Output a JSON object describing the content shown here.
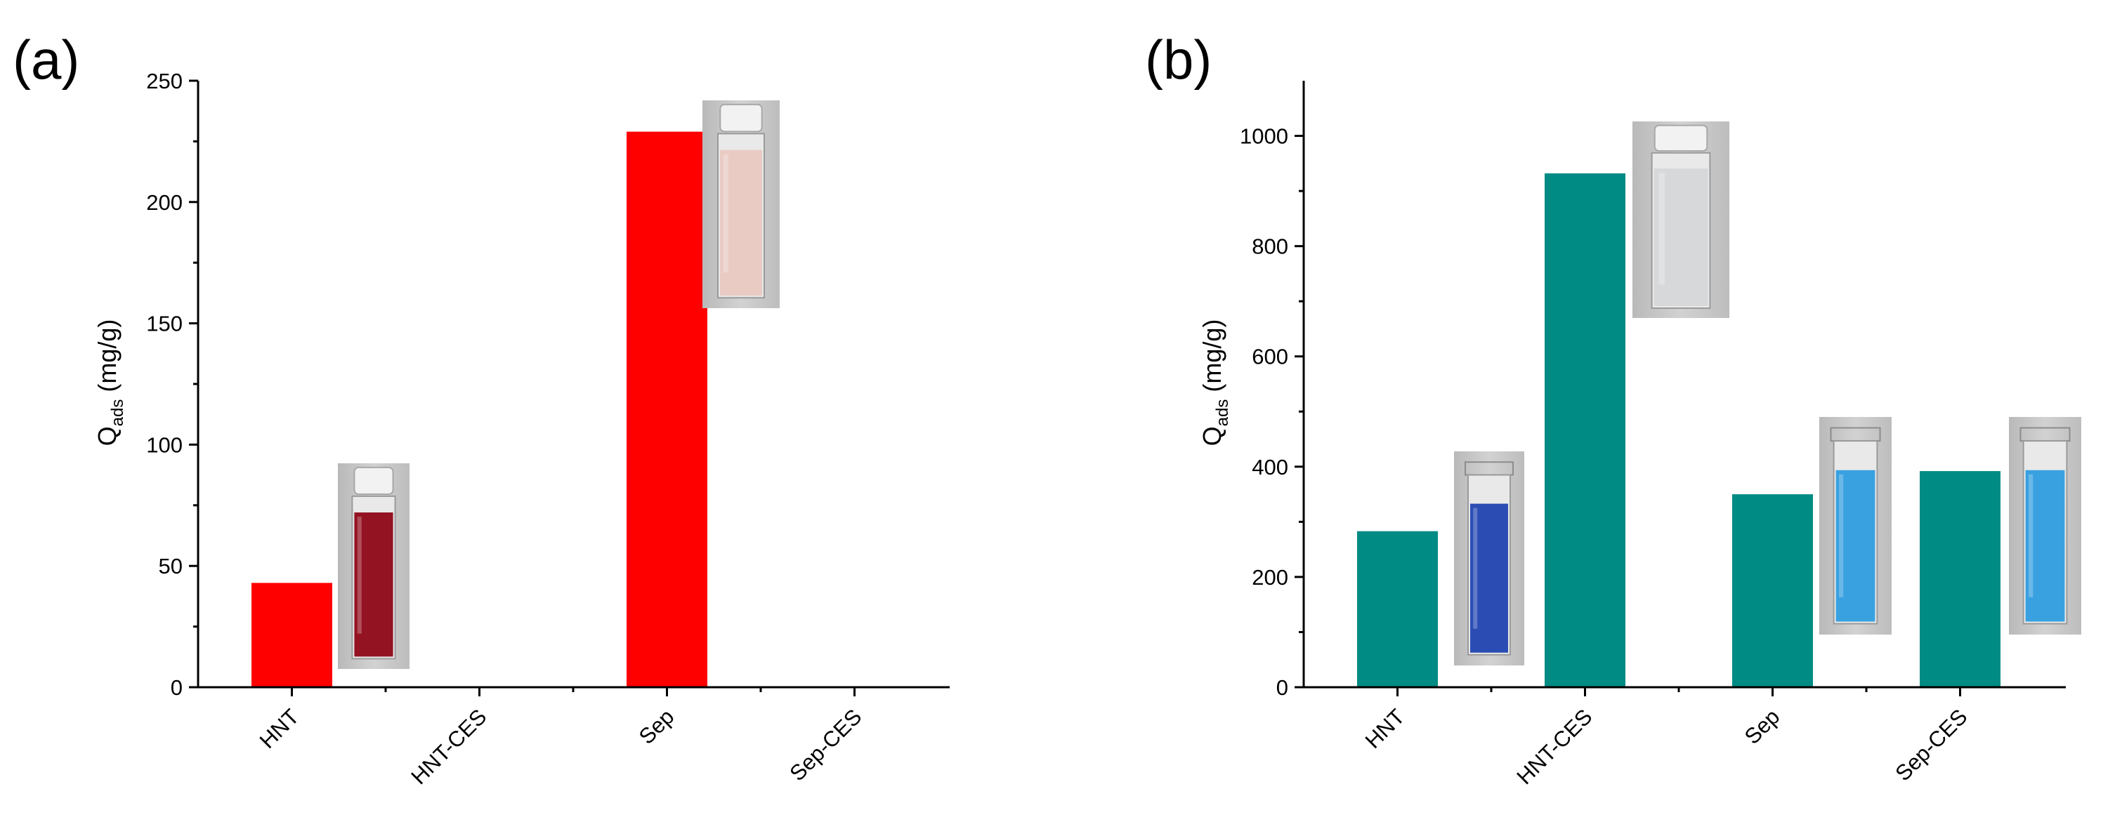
{
  "chart_data": [
    {
      "type": "bar",
      "panel_label": "(a)",
      "categories": [
        "HNT",
        "HNT-CES",
        "Sep",
        "Sep-CES"
      ],
      "values": [
        43,
        0,
        229,
        0
      ],
      "bar_color": "#ff0000",
      "ylabel_main": "Q",
      "ylabel_sub": "ads",
      "ylabel_unit": "(mg/g)",
      "ylim": [
        0,
        250
      ],
      "yticks": [
        0,
        50,
        100,
        150,
        200,
        250
      ],
      "ytick_labels": [
        "0",
        "50",
        "100",
        "150",
        "200",
        "250"
      ],
      "grid": false,
      "vials": [
        {
          "category": "HNT",
          "liquid_color": "#8b0010"
        },
        {
          "category": "Sep",
          "liquid_color": "#e8c8c0"
        }
      ]
    },
    {
      "type": "bar",
      "panel_label": "(b)",
      "categories": [
        "HNT",
        "HNT-CES",
        "Sep",
        "Sep-CES"
      ],
      "values": [
        283,
        932,
        350,
        392
      ],
      "bar_color": "#008b84",
      "ylabel_main": "Q",
      "ylabel_sub": "ads",
      "ylabel_unit": "(mg/g)",
      "ylim": [
        0,
        1100
      ],
      "yticks": [
        0,
        200,
        400,
        600,
        800,
        1000
      ],
      "ytick_labels": [
        "0",
        "200",
        "400",
        "600",
        "800",
        "1000"
      ],
      "grid": false,
      "vials": [
        {
          "category": "HNT",
          "liquid_color": "#1a3fae"
        },
        {
          "category": "HNT-CES",
          "liquid_color": "#d4d6d8"
        },
        {
          "category": "Sep",
          "liquid_color": "#2a9ae0"
        },
        {
          "category": "Sep-CES",
          "liquid_color": "#2a9ae0"
        }
      ]
    }
  ]
}
